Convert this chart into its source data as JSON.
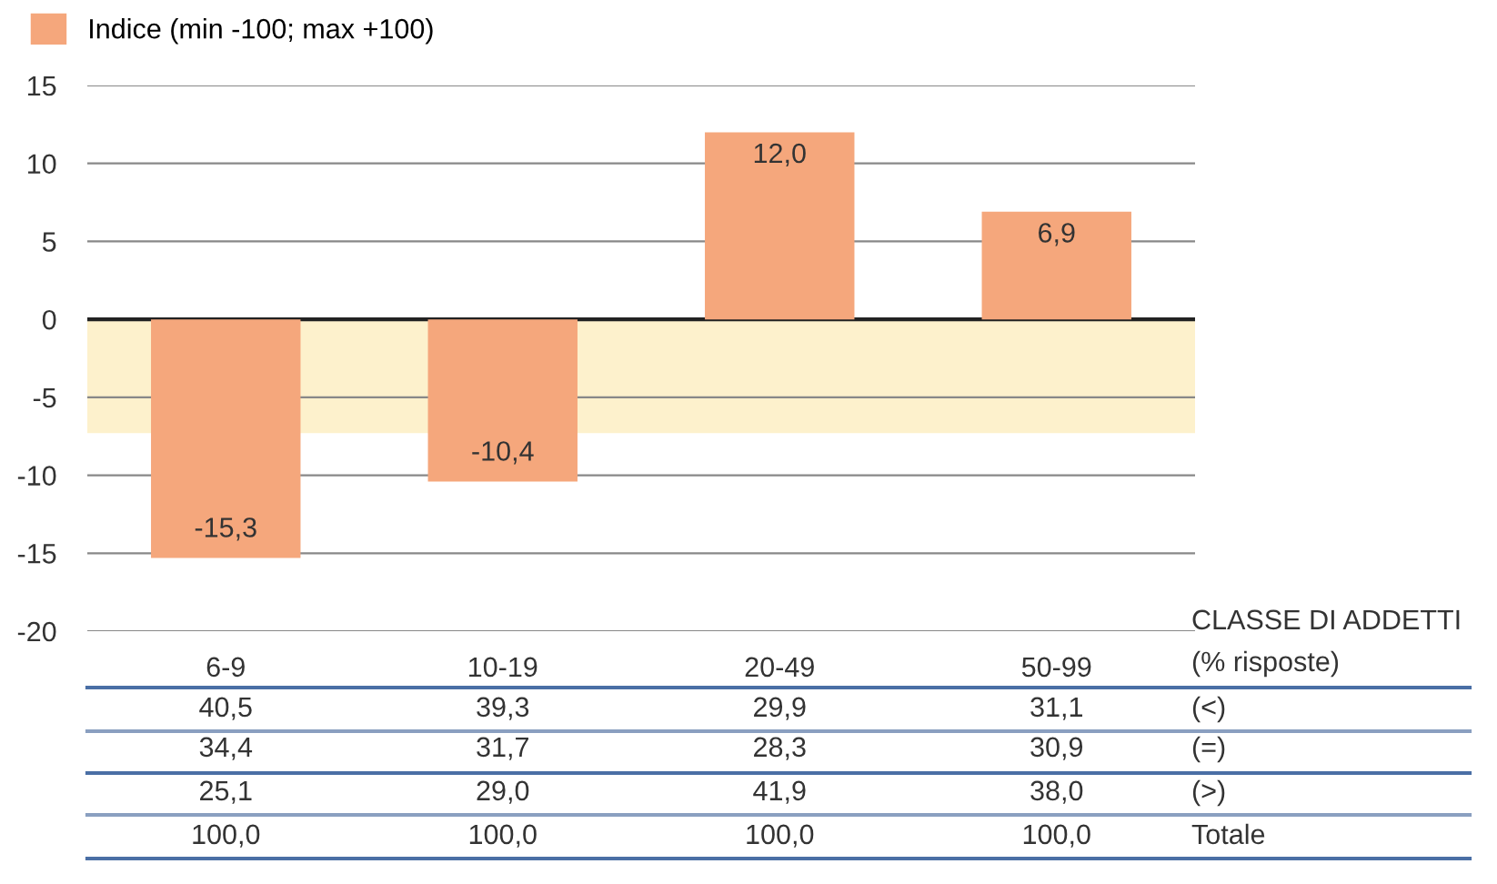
{
  "chart_data": {
    "type": "bar",
    "categories": [
      "6-9",
      "10-19",
      "20-49",
      "50-99"
    ],
    "series": [
      {
        "name": "Indice (min -100; max +100)",
        "color": "#f5a77c",
        "values": [
          -15.3,
          -10.4,
          12.0,
          6.9
        ],
        "value_labels": [
          "-15,3",
          "-10,4",
          "12,0",
          "6,9"
        ]
      }
    ],
    "ylim": [
      -20,
      15
    ],
    "yticks": [
      -20,
      -15,
      -10,
      -5,
      0,
      5,
      10,
      15
    ],
    "grid": "y",
    "legend": "top left",
    "bands": [
      {
        "axis": "y",
        "from": -7.3,
        "to": 0,
        "color": "#fdf1cc"
      }
    ],
    "annotations": [
      "CLASSE DI ADDETTI",
      "(% risposte)",
      "40,5",
      "39,3",
      "29,9",
      "31,1",
      "(<)",
      "34,4",
      "31,7",
      "28,3",
      "30,9",
      "(=)",
      "25,1",
      "29,0",
      "41,9",
      "38,0",
      "(>)",
      "100,0",
      "100,0",
      "100,0",
      "100,0",
      "Totale"
    ]
  }
}
